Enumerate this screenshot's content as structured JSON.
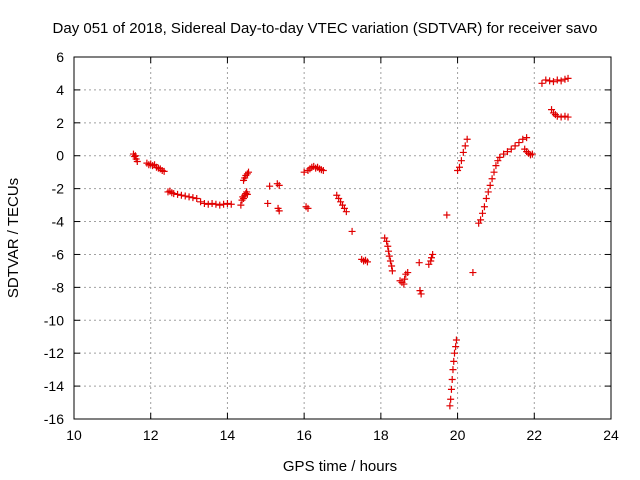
{
  "chart_data": {
    "type": "scatter",
    "title": "Day 051 of 2018, Sidereal Day-to-day VTEC variation (SDTVAR) for receiver savo",
    "xlabel": "GPS time / hours",
    "ylabel": "SDTVAR / TECUs",
    "xlim": [
      10,
      24
    ],
    "ylim": [
      -16,
      6
    ],
    "xticks": [
      10,
      12,
      14,
      16,
      18,
      20,
      22,
      24
    ],
    "yticks": [
      -16,
      -14,
      -12,
      -10,
      -8,
      -6,
      -4,
      -2,
      0,
      2,
      4,
      6
    ],
    "grid": true,
    "marker": "+",
    "color": "#e00000",
    "series": [
      {
        "name": "savo",
        "points": [
          [
            11.55,
            0.1
          ],
          [
            11.58,
            -0.05
          ],
          [
            11.6,
            0.0
          ],
          [
            11.62,
            -0.2
          ],
          [
            11.65,
            -0.35
          ],
          [
            11.9,
            -0.45
          ],
          [
            11.95,
            -0.55
          ],
          [
            12.0,
            -0.5
          ],
          [
            12.05,
            -0.6
          ],
          [
            12.1,
            -0.55
          ],
          [
            12.15,
            -0.7
          ],
          [
            12.2,
            -0.75
          ],
          [
            12.25,
            -0.8
          ],
          [
            12.3,
            -0.9
          ],
          [
            12.35,
            -0.95
          ],
          [
            12.45,
            -2.2
          ],
          [
            12.5,
            -2.15
          ],
          [
            12.55,
            -2.25
          ],
          [
            12.6,
            -2.3
          ],
          [
            12.7,
            -2.35
          ],
          [
            12.8,
            -2.4
          ],
          [
            12.9,
            -2.45
          ],
          [
            13.0,
            -2.5
          ],
          [
            13.1,
            -2.55
          ],
          [
            13.2,
            -2.6
          ],
          [
            13.3,
            -2.8
          ],
          [
            13.4,
            -2.9
          ],
          [
            13.5,
            -2.95
          ],
          [
            13.6,
            -2.9
          ],
          [
            13.7,
            -2.95
          ],
          [
            13.8,
            -3.0
          ],
          [
            13.9,
            -2.95
          ],
          [
            14.0,
            -2.9
          ],
          [
            14.1,
            -2.95
          ],
          [
            14.35,
            -3.0
          ],
          [
            14.38,
            -2.7
          ],
          [
            14.4,
            -2.5
          ],
          [
            14.42,
            -2.6
          ],
          [
            14.45,
            -2.4
          ],
          [
            14.48,
            -2.3
          ],
          [
            14.5,
            -2.2
          ],
          [
            14.52,
            -2.35
          ],
          [
            14.42,
            -1.5
          ],
          [
            14.45,
            -1.35
          ],
          [
            14.48,
            -1.2
          ],
          [
            14.52,
            -1.1
          ],
          [
            14.55,
            -1.0
          ],
          [
            15.05,
            -2.9
          ],
          [
            15.1,
            -1.85
          ],
          [
            15.3,
            -1.7
          ],
          [
            15.35,
            -1.8
          ],
          [
            15.32,
            -3.2
          ],
          [
            15.35,
            -3.35
          ],
          [
            16.0,
            -1.0
          ],
          [
            16.05,
            -3.1
          ],
          [
            16.1,
            -3.2
          ],
          [
            16.1,
            -0.9
          ],
          [
            16.15,
            -0.8
          ],
          [
            16.2,
            -0.7
          ],
          [
            16.25,
            -0.65
          ],
          [
            16.3,
            -0.75
          ],
          [
            16.35,
            -0.7
          ],
          [
            16.4,
            -0.8
          ],
          [
            16.45,
            -0.85
          ],
          [
            16.5,
            -0.9
          ],
          [
            16.85,
            -2.4
          ],
          [
            16.9,
            -2.6
          ],
          [
            16.95,
            -2.8
          ],
          [
            17.0,
            -3.0
          ],
          [
            17.05,
            -3.2
          ],
          [
            17.1,
            -3.4
          ],
          [
            17.25,
            -4.6
          ],
          [
            17.5,
            -6.3
          ],
          [
            17.55,
            -6.4
          ],
          [
            17.6,
            -6.35
          ],
          [
            17.65,
            -6.45
          ],
          [
            18.1,
            -5.0
          ],
          [
            18.15,
            -5.2
          ],
          [
            18.18,
            -5.5
          ],
          [
            18.2,
            -5.8
          ],
          [
            18.22,
            -6.1
          ],
          [
            18.25,
            -6.4
          ],
          [
            18.28,
            -6.7
          ],
          [
            18.3,
            -7.0
          ],
          [
            18.5,
            -7.6
          ],
          [
            18.55,
            -7.7
          ],
          [
            18.6,
            -7.8
          ],
          [
            18.62,
            -7.5
          ],
          [
            18.65,
            -7.2
          ],
          [
            18.7,
            -7.1
          ],
          [
            19.0,
            -6.5
          ],
          [
            19.02,
            -8.2
          ],
          [
            19.05,
            -8.4
          ],
          [
            19.25,
            -6.6
          ],
          [
            19.3,
            -6.4
          ],
          [
            19.32,
            -6.2
          ],
          [
            19.35,
            -6.0
          ],
          [
            19.72,
            -3.6
          ],
          [
            19.8,
            -15.2
          ],
          [
            19.82,
            -14.8
          ],
          [
            19.84,
            -14.2
          ],
          [
            19.86,
            -13.6
          ],
          [
            19.88,
            -13.0
          ],
          [
            19.9,
            -12.5
          ],
          [
            19.92,
            -12.0
          ],
          [
            19.95,
            -11.6
          ],
          [
            19.97,
            -11.2
          ],
          [
            20.0,
            -0.9
          ],
          [
            20.05,
            -0.7
          ],
          [
            20.1,
            -0.3
          ],
          [
            20.15,
            0.2
          ],
          [
            20.2,
            0.6
          ],
          [
            20.25,
            1.0
          ],
          [
            20.4,
            -7.1
          ],
          [
            20.55,
            -4.1
          ],
          [
            20.6,
            -3.9
          ],
          [
            20.65,
            -3.5
          ],
          [
            20.7,
            -3.1
          ],
          [
            20.75,
            -2.6
          ],
          [
            20.8,
            -2.2
          ],
          [
            20.85,
            -1.8
          ],
          [
            20.9,
            -1.4
          ],
          [
            20.95,
            -1.0
          ],
          [
            21.0,
            -0.6
          ],
          [
            21.05,
            -0.3
          ],
          [
            21.1,
            -0.1
          ],
          [
            21.2,
            0.1
          ],
          [
            21.3,
            0.25
          ],
          [
            21.4,
            0.4
          ],
          [
            21.5,
            0.6
          ],
          [
            21.6,
            0.8
          ],
          [
            21.7,
            1.0
          ],
          [
            21.8,
            1.1
          ],
          [
            21.75,
            0.4
          ],
          [
            21.8,
            0.25
          ],
          [
            21.85,
            0.15
          ],
          [
            21.9,
            0.05
          ],
          [
            21.95,
            0.1
          ],
          [
            22.2,
            4.4
          ],
          [
            22.3,
            4.6
          ],
          [
            22.4,
            4.55
          ],
          [
            22.5,
            4.5
          ],
          [
            22.6,
            4.6
          ],
          [
            22.7,
            4.55
          ],
          [
            22.8,
            4.65
          ],
          [
            22.88,
            4.7
          ],
          [
            22.45,
            2.8
          ],
          [
            22.5,
            2.6
          ],
          [
            22.55,
            2.5
          ],
          [
            22.6,
            2.4
          ],
          [
            22.7,
            2.35
          ],
          [
            22.8,
            2.4
          ],
          [
            22.88,
            2.35
          ]
        ]
      }
    ]
  }
}
